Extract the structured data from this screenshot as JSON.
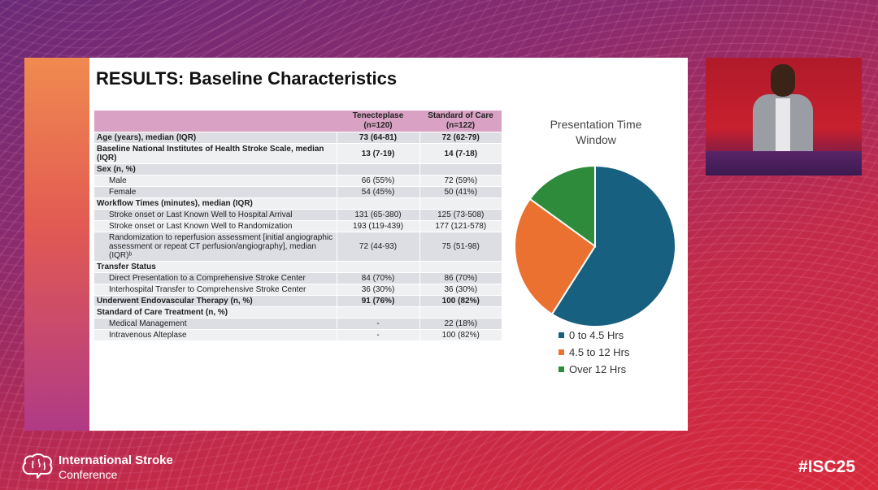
{
  "slide": {
    "title": "RESULTS: Baseline Characteristics",
    "table": {
      "headers": [
        "",
        "Tenecteplase\n(n=120)",
        "Standard of Care\n(n=122)"
      ],
      "rows": [
        {
          "label": "Age (years), median (IQR)",
          "v1": "73 (64-81)",
          "v2": "72 (62-79)",
          "bold": true,
          "indent": false
        },
        {
          "label": "Baseline National Institutes of Health Stroke Scale, median (IQR)",
          "v1": "13 (7-19)",
          "v2": "14 (7-18)",
          "bold": true,
          "indent": false
        },
        {
          "label": "Sex (n, %)",
          "v1": "",
          "v2": "",
          "bold": true,
          "indent": false
        },
        {
          "label": "Male",
          "v1": "66 (55%)",
          "v2": "72 (59%)",
          "bold": false,
          "indent": true
        },
        {
          "label": "Female",
          "v1": "54 (45%)",
          "v2": "50 (41%)",
          "bold": false,
          "indent": true
        },
        {
          "label": "Workflow Times (minutes), median (IQR)",
          "v1": "",
          "v2": "",
          "bold": true,
          "indent": false
        },
        {
          "label": "Stroke onset or Last Known Well to Hospital Arrival",
          "v1": "131 (65-380)",
          "v2": "125 (73-508)",
          "bold": false,
          "indent": true
        },
        {
          "label": "Stroke onset or Last Known Well to Randomization",
          "v1": "193 (119-439)",
          "v2": "177 (121-578)",
          "bold": false,
          "indent": true
        },
        {
          "label": "Randomization to reperfusion assessment [initial angiographic assessment or repeat CT perfusion/angiography], median (IQR)ᵇ",
          "v1": "72 (44-93)",
          "v2": "75 (51-98)",
          "bold": false,
          "indent": true
        },
        {
          "label": "Transfer Status",
          "v1": "",
          "v2": "",
          "bold": true,
          "indent": false
        },
        {
          "label": "Direct Presentation to a Comprehensive Stroke Center",
          "v1": "84 (70%)",
          "v2": "86 (70%)",
          "bold": false,
          "indent": true
        },
        {
          "label": "Interhospital Transfer to Comprehensive Stroke Center",
          "v1": "36 (30%)",
          "v2": "36 (30%)",
          "bold": false,
          "indent": true
        },
        {
          "label": "Underwent Endovascular Therapy (n, %)",
          "v1": "91 (76%)",
          "v2": "100 (82%)",
          "bold": true,
          "indent": false
        },
        {
          "label": "Standard of Care Treatment (n, %)",
          "v1": "",
          "v2": "",
          "bold": true,
          "indent": false
        },
        {
          "label": "Medical Management",
          "v1": "-",
          "v2": "22 (18%)",
          "bold": false,
          "indent": true
        },
        {
          "label": "Intravenous Alteplase",
          "v1": "-",
          "v2": "100 (82%)",
          "bold": false,
          "indent": true
        }
      ]
    }
  },
  "chart_data": {
    "type": "pie",
    "title": "Presentation Time Window",
    "labels": [
      "0 to 4.5 Hrs",
      "4.5 to 12 Hrs",
      "Over 12 Hrs"
    ],
    "values": [
      59,
      26,
      15
    ],
    "colors": [
      "#17607f",
      "#ea7130",
      "#2e8b3b"
    ],
    "legend": "bottom"
  },
  "footer": {
    "org": "International Stroke",
    "conf": "Conference",
    "hashtag": "#ISC25",
    "logo_icon": "brain-icon"
  }
}
